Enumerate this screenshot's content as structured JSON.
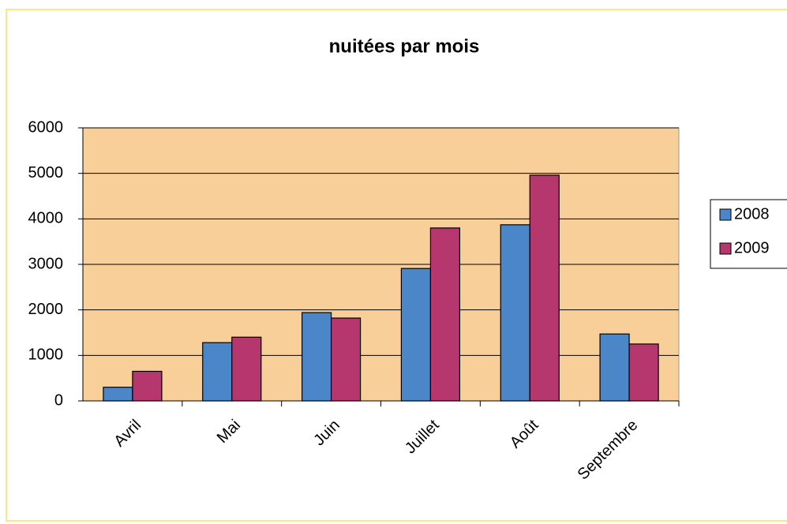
{
  "chart_data": {
    "type": "bar",
    "title": "nuitées par mois",
    "categories": [
      "Avril",
      "Mai",
      "Juin",
      "Juillet",
      "Août",
      "Septembre"
    ],
    "series": [
      {
        "name": "2008",
        "color": "#4a86c8",
        "values": [
          300,
          1280,
          1940,
          2910,
          3870,
          1470
        ]
      },
      {
        "name": "2009",
        "color": "#b5376e",
        "values": [
          650,
          1400,
          1820,
          3800,
          4960,
          1250
        ]
      }
    ],
    "ylim": [
      0,
      6000
    ],
    "yticks": [
      0,
      1000,
      2000,
      3000,
      4000,
      5000,
      6000
    ],
    "grid": true,
    "legend": "right"
  }
}
